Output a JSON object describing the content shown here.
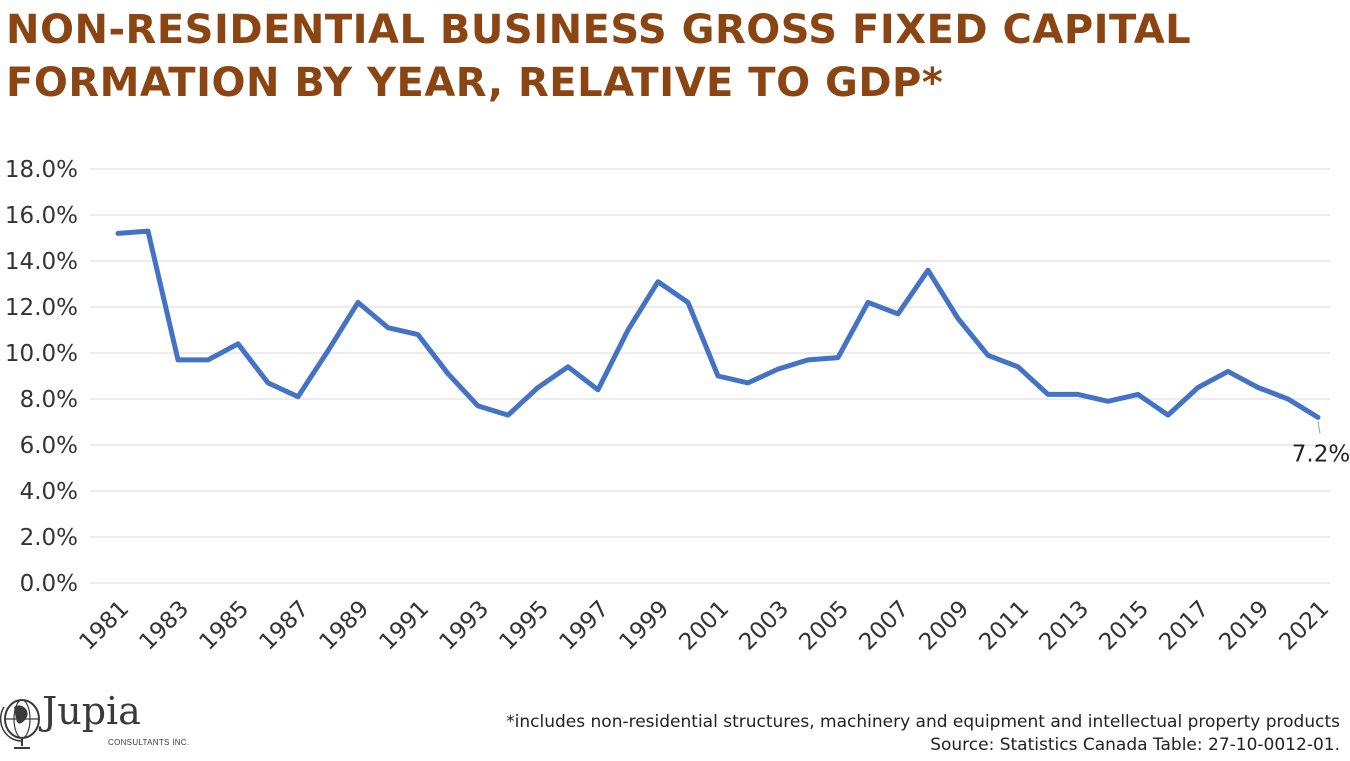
{
  "title": {
    "line1": "NON-RESIDENTIAL BUSINESS GROSS FIXED CAPITAL",
    "line2": "FORMATION BY YEAR, RELATIVE TO GDP*"
  },
  "chart_data": {
    "type": "line",
    "title": "NON-RESIDENTIAL BUSINESS GROSS FIXED CAPITAL FORMATION BY YEAR, RELATIVE TO GDP*",
    "xlabel": "",
    "ylabel": "",
    "ylim": [
      0,
      18
    ],
    "yticks": [
      "0.0%",
      "2.0%",
      "4.0%",
      "6.0%",
      "8.0%",
      "10.0%",
      "12.0%",
      "14.0%",
      "16.0%",
      "18.0%"
    ],
    "xtick_labels": [
      "1981",
      "1983",
      "1985",
      "1987",
      "1989",
      "1991",
      "1993",
      "1995",
      "1997",
      "1999",
      "2001",
      "2003",
      "2005",
      "2007",
      "2009",
      "2011",
      "2013",
      "2015",
      "2017",
      "2019",
      "2021"
    ],
    "grid": "horizontal",
    "line_color": "#4472C4",
    "x": [
      1981,
      1982,
      1983,
      1984,
      1985,
      1986,
      1987,
      1988,
      1989,
      1990,
      1991,
      1992,
      1993,
      1994,
      1995,
      1996,
      1997,
      1998,
      1999,
      2000,
      2001,
      2002,
      2003,
      2004,
      2005,
      2006,
      2007,
      2008,
      2009,
      2010,
      2011,
      2012,
      2013,
      2014,
      2015,
      2016,
      2017,
      2018,
      2019,
      2020,
      2021
    ],
    "series": [
      {
        "values": [
          15.2,
          15.3,
          9.7,
          9.7,
          10.4,
          8.7,
          8.1,
          10.1,
          12.2,
          11.1,
          10.8,
          9.1,
          7.7,
          7.3,
          8.5,
          9.4,
          8.4,
          11.0,
          13.1,
          12.2,
          9.0,
          8.7,
          9.3,
          9.7,
          9.8,
          12.2,
          11.7,
          13.6,
          11.5,
          9.9,
          9.4,
          8.2,
          8.2,
          7.9,
          8.2,
          7.3,
          8.5,
          9.2,
          8.5,
          8.0,
          7.2
        ]
      }
    ],
    "annotations": [
      {
        "x": 2021,
        "label": "7.2%"
      }
    ]
  },
  "footnote": {
    "line1": "*includes non-residential structures, machinery and equipment and intellectual property products",
    "line2": "Source: Statistics Canada Table: 27-10-0012-01."
  },
  "logo": {
    "word": "Jupia",
    "sub": "CONSULTANTS INC.",
    "icon": "globe-icon"
  }
}
